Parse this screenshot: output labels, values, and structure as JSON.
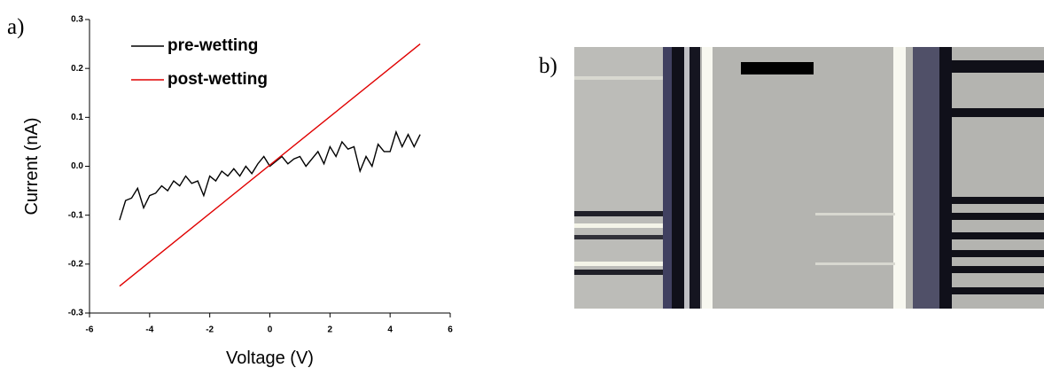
{
  "panel_labels": [
    "a)",
    "b)"
  ],
  "chart_data": {
    "type": "line",
    "xlabel": "Voltage (V)",
    "ylabel": "Current (nA)",
    "xlim": [
      -6,
      6
    ],
    "ylim": [
      -0.3,
      0.3
    ],
    "xticks": [
      -6,
      -4,
      -2,
      0,
      2,
      4,
      6
    ],
    "yticks": [
      -0.3,
      -0.2,
      -0.1,
      {
        "value": 0,
        "label": "0.0"
      },
      0.1,
      0.2,
      0.3
    ],
    "legend": "upper left",
    "series": [
      {
        "name": "pre-wetting",
        "color": "#000000",
        "x": [
          -5,
          -4.8,
          -4.6,
          -4.4,
          -4.2,
          -4,
          -3.8,
          -3.6,
          -3.4,
          -3.2,
          -3,
          -2.8,
          -2.6,
          -2.4,
          -2.2,
          -2,
          -1.8,
          -1.6,
          -1.4,
          -1.2,
          -1,
          -0.8,
          -0.6,
          -0.4,
          -0.2,
          0,
          0.2,
          0.4,
          0.6,
          0.8,
          1,
          1.2,
          1.4,
          1.6,
          1.8,
          2,
          2.2,
          2.4,
          2.6,
          2.8,
          3,
          3.2,
          3.4,
          3.6,
          3.8,
          4,
          4.2,
          4.4,
          4.6,
          4.8,
          5
        ],
        "values": [
          -0.11,
          -0.07,
          -0.065,
          -0.045,
          -0.085,
          -0.06,
          -0.055,
          -0.04,
          -0.05,
          -0.03,
          -0.04,
          -0.02,
          -0.035,
          -0.03,
          -0.06,
          -0.02,
          -0.03,
          -0.01,
          -0.02,
          -0.005,
          -0.02,
          0.0,
          -0.015,
          0.005,
          0.02,
          0.0,
          0.01,
          0.02,
          0.005,
          0.015,
          0.02,
          0.0,
          0.015,
          0.03,
          0.005,
          0.04,
          0.02,
          0.05,
          0.035,
          0.04,
          -0.01,
          0.02,
          0.0,
          0.045,
          0.03,
          0.03,
          0.07,
          0.04,
          0.065,
          0.04,
          0.065
        ]
      },
      {
        "name": "post-wetting",
        "color": "#e00000",
        "x": [
          -5,
          5
        ],
        "values": [
          -0.245,
          0.25
        ]
      }
    ]
  }
}
